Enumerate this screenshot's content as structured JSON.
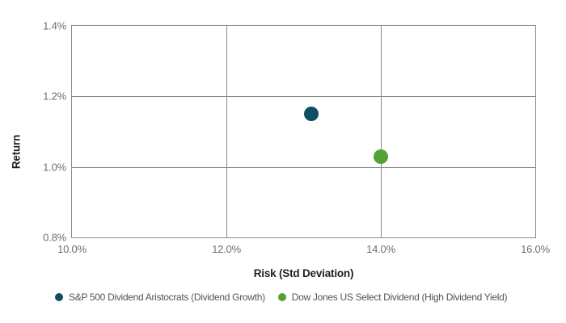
{
  "chart_data": {
    "type": "scatter",
    "title": "",
    "xlabel": "Risk (Std Deviation)",
    "ylabel": "Return",
    "xlim": [
      10.0,
      16.0
    ],
    "ylim": [
      0.8,
      1.4
    ],
    "x_ticks": [
      "10.0%",
      "12.0%",
      "14.0%",
      "16.0%"
    ],
    "x_tick_values": [
      10.0,
      12.0,
      14.0,
      16.0
    ],
    "y_ticks": [
      "0.8%",
      "1.0%",
      "1.2%",
      "1.4%"
    ],
    "y_tick_values": [
      0.8,
      1.0,
      1.2,
      1.4
    ],
    "x_gridlines": [
      12.0,
      14.0
    ],
    "y_gridlines": [
      1.0,
      1.2
    ],
    "grid": true,
    "legend_position": "bottom",
    "series": [
      {
        "name": "S&P 500 Dividend Aristocrats (Dividend Growth)",
        "color": "#0e4f63",
        "points": [
          {
            "x": 13.1,
            "y": 1.15
          }
        ]
      },
      {
        "name": "Dow Jones US Select Dividend (High Dividend Yield)",
        "color": "#56a134",
        "points": [
          {
            "x": 14.0,
            "y": 1.03
          }
        ]
      }
    ]
  },
  "colors": {
    "grid": "#87898c",
    "tick_label": "#6d6e71",
    "axis_title": "#231f20",
    "legend_text": "#545456",
    "background": "#ffffff"
  }
}
